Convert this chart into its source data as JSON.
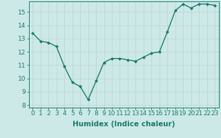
{
  "x": [
    0,
    1,
    2,
    3,
    4,
    5,
    6,
    7,
    8,
    9,
    10,
    11,
    12,
    13,
    14,
    15,
    16,
    17,
    18,
    19,
    20,
    21,
    22,
    23
  ],
  "y": [
    13.4,
    12.8,
    12.7,
    12.4,
    10.9,
    9.7,
    9.4,
    8.4,
    9.8,
    11.2,
    11.5,
    11.5,
    11.4,
    11.3,
    11.6,
    11.9,
    12.0,
    13.5,
    15.1,
    15.6,
    15.3,
    15.6,
    15.6,
    15.5
  ],
  "line_color": "#1a7a6a",
  "marker": "D",
  "marker_size": 2.0,
  "bg_color": "#cce9e8",
  "grid_color": "#c0d8d6",
  "xlabel": "Humidex (Indice chaleur)",
  "xlim": [
    -0.5,
    23.5
  ],
  "ylim": [
    7.8,
    15.8
  ],
  "yticks": [
    8,
    9,
    10,
    11,
    12,
    13,
    14,
    15
  ],
  "xticks": [
    0,
    1,
    2,
    3,
    4,
    5,
    6,
    7,
    8,
    9,
    10,
    11,
    12,
    13,
    14,
    15,
    16,
    17,
    18,
    19,
    20,
    21,
    22,
    23
  ],
  "tick_label_fontsize": 6.5,
  "xlabel_fontsize": 7.5,
  "line_width": 1.0
}
